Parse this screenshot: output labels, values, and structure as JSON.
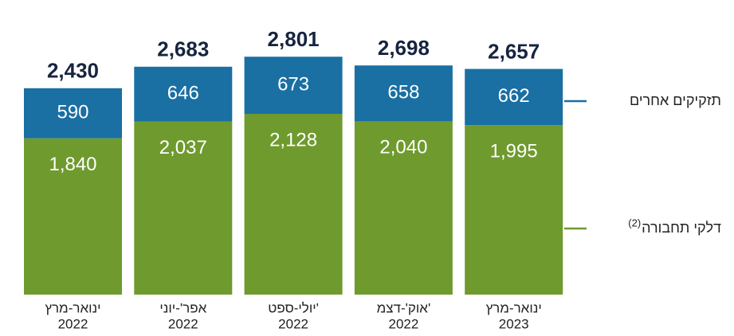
{
  "chart_data": {
    "type": "stacked_bar",
    "categories": [
      [
        "ינואר-מרץ",
        "2022"
      ],
      [
        "אפר'-יוני",
        "2022"
      ],
      [
        "יולי-ספט'",
        "2022"
      ],
      [
        "אוק'-דצמ'",
        "2022"
      ],
      [
        "ינואר-מרץ",
        "2023"
      ]
    ],
    "series": [
      {
        "name": "דלקי תחבורה",
        "name_note": "(2)",
        "color": "#6f9a2e",
        "values": [
          1840,
          2037,
          2128,
          2040,
          1995
        ],
        "value_labels": [
          "1,840",
          "2,037",
          "2,128",
          "2,040",
          "1,995"
        ]
      },
      {
        "name": "תזקיקים אחרים",
        "color": "#1a6fa3",
        "values": [
          590,
          646,
          673,
          658,
          662
        ],
        "value_labels": [
          "590",
          "646",
          "673",
          "658",
          "662"
        ]
      }
    ],
    "totals": [
      2430,
      2683,
      2801,
      2698,
      2657
    ],
    "total_labels": [
      "2,430",
      "2,683",
      "2,801",
      "2,698",
      "2,657"
    ],
    "ylim": [
      0,
      3000
    ]
  }
}
